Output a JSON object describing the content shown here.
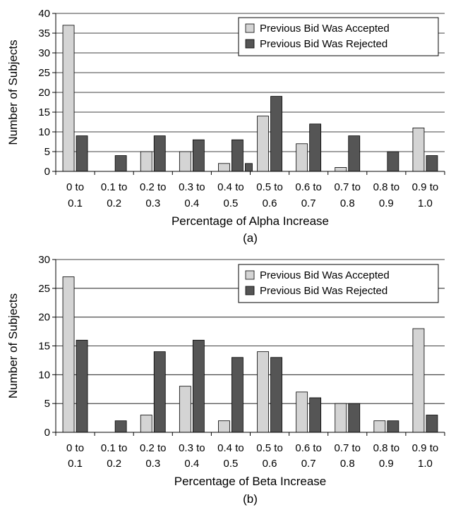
{
  "chart_data": [
    {
      "type": "bar",
      "caption": "(a)",
      "xlabel": "Percentage of Alpha Increase",
      "ylabel": "Number of Subjects",
      "ylim": [
        0,
        40
      ],
      "yticks": [
        0,
        5,
        10,
        15,
        20,
        25,
        30,
        35,
        40
      ],
      "grid": true,
      "legend_position": "top-right",
      "categories": [
        [
          "0 to",
          "0.1"
        ],
        [
          "0.1 to",
          "0.2"
        ],
        [
          "0.2 to",
          "0.3"
        ],
        [
          "0.3 to",
          "0.4"
        ],
        [
          "0.4 to",
          "0.5"
        ],
        [
          "0.5 to",
          "0.6"
        ],
        [
          "0.6 to",
          "0.7"
        ],
        [
          "0.7 to",
          "0.8"
        ],
        [
          "0.8 to",
          "0.9"
        ],
        [
          "0.9 to",
          "1.0"
        ]
      ],
      "series": [
        {
          "name": "Previous Bid Was Accepted",
          "color": "#d4d4d4",
          "values": [
            37,
            0,
            5,
            5,
            2,
            14,
            7,
            1,
            0,
            11
          ]
        },
        {
          "name": "Previous Bid Was Rejected",
          "color": "#555555",
          "values": [
            9,
            4,
            9,
            8,
            8,
            19,
            12,
            9,
            5,
            4
          ]
        }
      ],
      "extra_bars": [
        {
          "category_index": 4,
          "value": 2,
          "color": "#555555"
        }
      ]
    },
    {
      "type": "bar",
      "caption": "(b)",
      "xlabel": "Percentage of Beta Increase",
      "ylabel": "Number of Subjects",
      "ylim": [
        0,
        30
      ],
      "yticks": [
        0,
        5,
        10,
        15,
        20,
        25,
        30
      ],
      "grid": true,
      "legend_position": "top-right",
      "categories": [
        [
          "0 to",
          "0.1"
        ],
        [
          "0.1 to",
          "0.2"
        ],
        [
          "0.2 to",
          "0.3"
        ],
        [
          "0.3 to",
          "0.4"
        ],
        [
          "0.4 to",
          "0.5"
        ],
        [
          "0.5 to",
          "0.6"
        ],
        [
          "0.6 to",
          "0.7"
        ],
        [
          "0.7 to",
          "0.8"
        ],
        [
          "0.8 to",
          "0.9"
        ],
        [
          "0.9 to",
          "1.0"
        ]
      ],
      "series": [
        {
          "name": "Previous Bid Was Accepted",
          "color": "#d4d4d4",
          "values": [
            27,
            0,
            3,
            8,
            2,
            14,
            7,
            5,
            2,
            18
          ]
        },
        {
          "name": "Previous Bid Was Rejected",
          "color": "#555555",
          "values": [
            16,
            2,
            14,
            16,
            13,
            13,
            6,
            5,
            2,
            3
          ]
        }
      ]
    }
  ]
}
